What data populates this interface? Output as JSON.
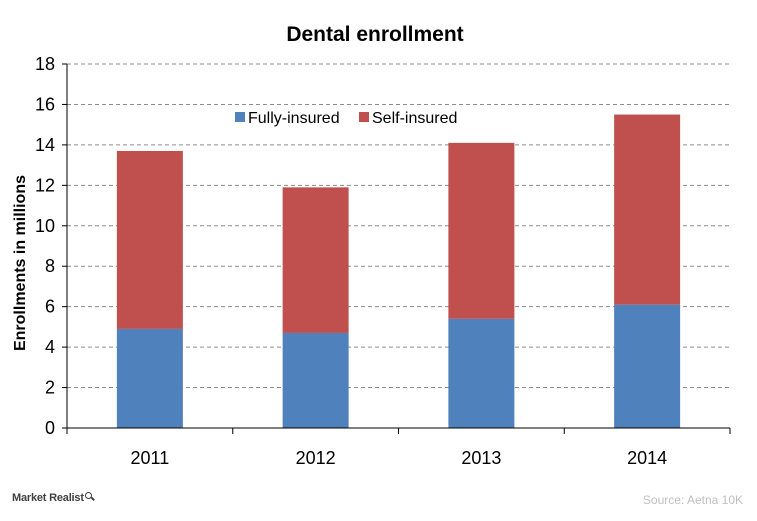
{
  "chart_data": {
    "type": "bar",
    "stacked": true,
    "title": "Dental enrollment",
    "xlabel": "",
    "ylabel": "Enrollments in millions",
    "categories": [
      "2011",
      "2012",
      "2013",
      "2014"
    ],
    "series": [
      {
        "name": "Fully-insured",
        "color": "#4f81bd",
        "values": [
          4.9,
          4.7,
          5.4,
          6.1
        ]
      },
      {
        "name": "Self-insured",
        "color": "#c0504d",
        "values": [
          8.8,
          7.2,
          8.7,
          9.4
        ]
      }
    ],
    "ylim": [
      0,
      18
    ],
    "yticks": [
      "0",
      "2",
      "4",
      "6",
      "8",
      "10",
      "12",
      "14",
      "16",
      "18"
    ],
    "grid": true,
    "legend_position": "top-center"
  },
  "footer": {
    "logo_text": "Market Realist",
    "source": "Source: Aetna 10K"
  }
}
